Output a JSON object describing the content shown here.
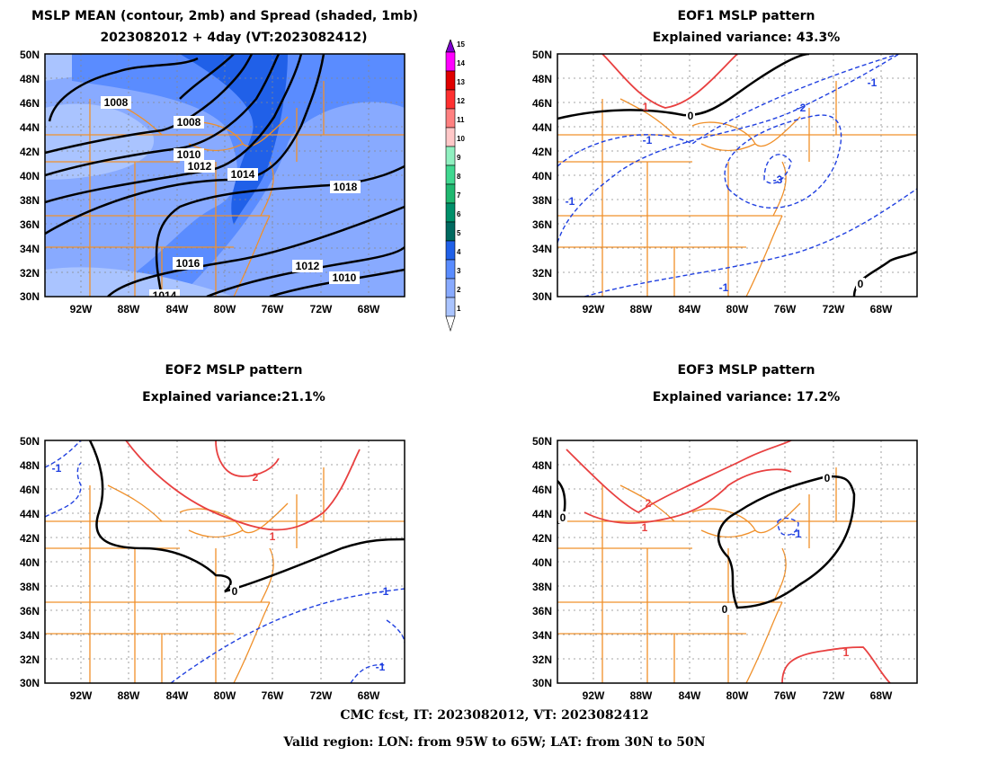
{
  "panels": [
    {
      "title1": "MSLP MEAN (contour, 2mb) and Spread (shaded, 1mb)",
      "title2": "2023082012 + 4day (VT:2023082412)",
      "contour_labels": [
        "1008",
        "1008",
        "1010",
        "1012",
        "1014",
        "1016",
        "1012",
        "1010",
        "1018",
        "1014"
      ]
    },
    {
      "title1": "EOF1 MSLP pattern",
      "title2": "Explained variance: 43.3%",
      "contour_labels": [
        "1",
        "0",
        "-1",
        "-2",
        "-1",
        "-3",
        "-1",
        "-1",
        "0"
      ]
    },
    {
      "title1": "EOF2 MSLP pattern",
      "title2": "Explained variance:21.1%",
      "contour_labels": [
        "-1",
        "2",
        "1",
        "0",
        "-1",
        "-1"
      ]
    },
    {
      "title1": "EOF3 MSLP pattern",
      "title2": "Explained variance: 17.2%",
      "contour_labels": [
        "0",
        "2",
        "1",
        "0",
        "0",
        "-1",
        "1"
      ]
    }
  ],
  "axes": {
    "lat_labels": [
      "50N",
      "48N",
      "46N",
      "44N",
      "42N",
      "40N",
      "38N",
      "36N",
      "34N",
      "32N",
      "30N"
    ],
    "lon_labels": [
      "92W",
      "88W",
      "84W",
      "80W",
      "76W",
      "72W",
      "68W"
    ]
  },
  "colorbar": {
    "levels": [
      "1",
      "2",
      "3",
      "4",
      "5",
      "6",
      "7",
      "8",
      "9",
      "10",
      "11",
      "12",
      "13",
      "14",
      "15"
    ],
    "colors": [
      "#ccddff",
      "#aac4ff",
      "#88aaff",
      "#5a8cff",
      "#2060e8",
      "#006a60",
      "#00906a",
      "#20b870",
      "#40d890",
      "#90f0c0",
      "#ffc8c8",
      "#ff8080",
      "#ff3030",
      "#e00000",
      "#ff00ff",
      "#8000d0"
    ]
  },
  "footer": {
    "line1": "CMC fcst, IT: 2023082012, VT: 2023082412",
    "line2": "Valid region: LON: from 95W to 65W; LAT: from 30N to 50N"
  }
}
